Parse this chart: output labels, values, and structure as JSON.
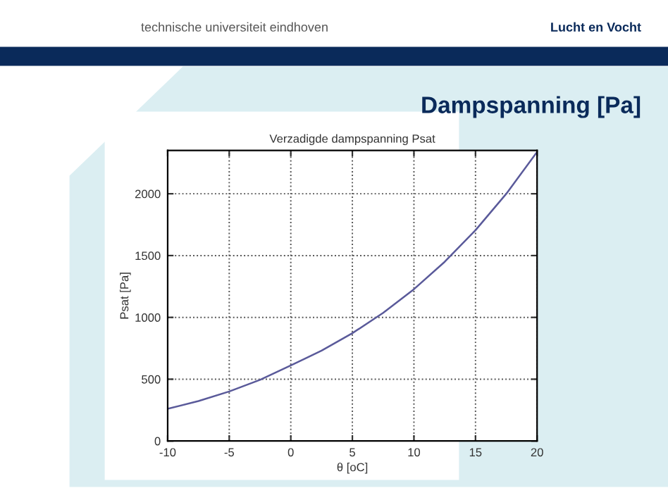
{
  "chart_data": {
    "type": "line",
    "title": "Verzadigde dampspanning Psat",
    "xlabel": "θ [oC]",
    "ylabel": "Psat [Pa]",
    "annotations": [
      "technische universiteit eindhoven",
      "Lucht en Vocht",
      "Dampspanning [Pa]"
    ],
    "x": [
      -10,
      -7.5,
      -5,
      -2.5,
      0,
      2.5,
      5,
      7.5,
      10,
      12.5,
      15,
      17.5,
      20
    ],
    "series": [
      {
        "color": "#5a5a9a",
        "values": [
          260,
          323,
          401,
          495,
          611,
          731,
          872,
          1037,
          1228,
          1450,
          1705,
          2000,
          2338
        ]
      }
    ],
    "xlim": [
      -10,
      20
    ],
    "xticks": [
      -10,
      -5,
      0,
      5,
      10,
      15,
      20
    ],
    "ylim": [
      0,
      2350
    ],
    "yticks": [
      0,
      500,
      1000,
      1500,
      2000
    ],
    "grid": true,
    "line_style": "solid",
    "marker": "none",
    "legend": false
  }
}
